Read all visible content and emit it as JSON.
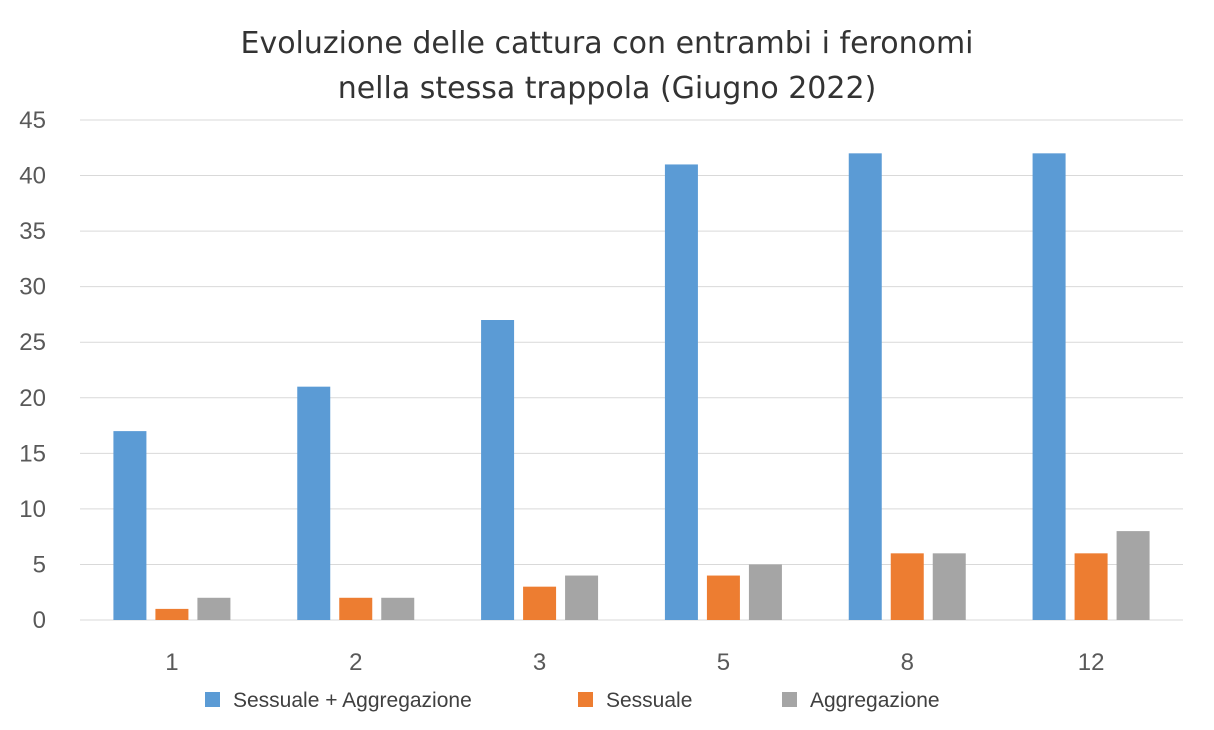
{
  "chart_data": {
    "type": "bar",
    "title": [
      "Evoluzione delle cattura con entrambi i feronomi",
      "nella stessa trappola (Giugno 2022)"
    ],
    "xlabel": "",
    "ylabel": "",
    "categories": [
      "1",
      "2",
      "3",
      "5",
      "8",
      "12"
    ],
    "series": [
      {
        "name": "Sessuale + Aggregazione",
        "color": "#5b9bd5",
        "values": [
          17,
          21,
          27,
          41,
          42,
          42
        ]
      },
      {
        "name": "Sessuale",
        "color": "#ed7d31",
        "values": [
          1,
          2,
          3,
          4,
          6,
          6
        ]
      },
      {
        "name": "Aggregazione",
        "color": "#a5a5a5",
        "values": [
          2,
          2,
          4,
          5,
          6,
          8
        ]
      }
    ],
    "ylim": [
      0,
      45
    ],
    "yticks": [
      0,
      5,
      10,
      15,
      20,
      25,
      30,
      35,
      40,
      45
    ],
    "grid": true,
    "legend_position": "bottom"
  }
}
